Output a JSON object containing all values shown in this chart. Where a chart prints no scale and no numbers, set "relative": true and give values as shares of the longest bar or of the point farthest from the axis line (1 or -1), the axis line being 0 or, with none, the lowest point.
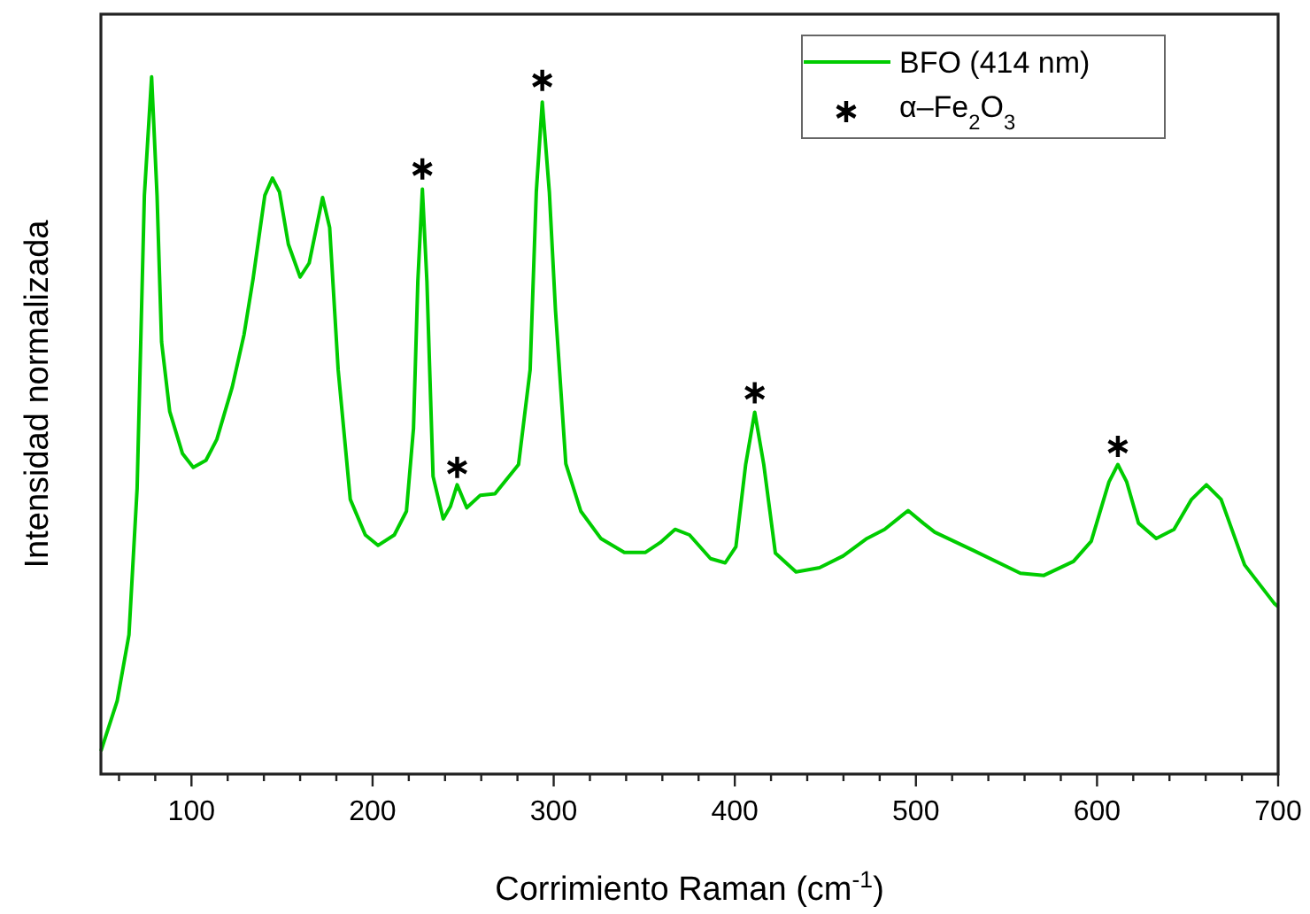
{
  "chart_data": {
    "type": "line",
    "relative": true,
    "xlabel": "Corrimiento Raman (cm$^{-1}$)",
    "ylabel": "Intensidad normalizada",
    "xlim": [
      50,
      700
    ],
    "xticks": [
      {
        "value": 60,
        "label": null
      },
      {
        "value": 80,
        "label": null
      },
      100,
      {
        "value": 120,
        "label": null
      },
      {
        "value": 140,
        "label": null
      },
      {
        "value": 160,
        "label": null
      },
      {
        "value": 180,
        "label": null
      },
      200,
      {
        "value": 220,
        "label": null
      },
      {
        "value": 240,
        "label": null
      },
      {
        "value": 260,
        "label": null
      },
      {
        "value": 280,
        "label": null
      },
      300,
      {
        "value": 320,
        "label": null
      },
      {
        "value": 340,
        "label": null
      },
      {
        "value": 360,
        "label": null
      },
      {
        "value": 380,
        "label": null
      },
      400,
      {
        "value": 420,
        "label": null
      },
      {
        "value": 440,
        "label": null
      },
      {
        "value": 460,
        "label": null
      },
      {
        "value": 480,
        "label": null
      },
      500,
      {
        "value": 520,
        "label": null
      },
      {
        "value": 540,
        "label": null
      },
      {
        "value": 560,
        "label": null
      },
      {
        "value": 580,
        "label": null
      },
      600,
      {
        "value": 620,
        "label": null
      },
      {
        "value": 640,
        "label": null
      },
      {
        "value": 660,
        "label": null
      },
      {
        "value": 680,
        "label": null
      },
      700
    ],
    "tick_labels": "x",
    "legend": "top right",
    "grid": false,
    "series": [
      {
        "name": "BFO (414 nm)",
        "color": "#00cc00",
        "line_style": "solid",
        "marker": "none",
        "x": [
          50,
          59,
          65.5,
          70,
          74,
          78,
          81,
          83.5,
          88,
          95,
          101,
          108,
          114,
          122.5,
          129,
          134,
          140.5,
          144.7,
          148.6,
          153.5,
          160,
          165,
          172.4,
          176.3,
          181,
          187.7,
          196,
          203,
          212,
          218.7,
          222.6,
          225,
          227.5,
          230,
          233.4,
          239,
          243,
          246.7,
          252,
          259.5,
          267.6,
          280.6,
          287,
          290.4,
          293.7,
          297.6,
          301,
          306.7,
          315,
          326,
          339,
          350.7,
          358.8,
          367,
          375,
          386.6,
          394.7,
          400.6,
          406,
          411,
          416,
          422.4,
          433.8,
          446.8,
          459.9,
          473,
          482.7,
          495.7,
          504,
          510.4,
          531.6,
          557.7,
          570.7,
          587,
          596.8,
          606.6,
          611.5,
          616.4,
          622.9,
          632.7,
          642.5,
          652.2,
          660.4,
          668.5,
          681.5,
          697.8,
          700
        ],
        "values": [
          0.033,
          0.105,
          0.2,
          0.41,
          0.83,
          1,
          0.83,
          0.62,
          0.52,
          0.46,
          0.44,
          0.45,
          0.48,
          0.555,
          0.63,
          0.71,
          0.83,
          0.855,
          0.835,
          0.76,
          0.713,
          0.733,
          0.827,
          0.784,
          0.58,
          0.394,
          0.343,
          0.328,
          0.343,
          0.377,
          0.496,
          0.707,
          0.839,
          0.707,
          0.427,
          0.366,
          0.384,
          0.415,
          0.382,
          0.4,
          0.402,
          0.444,
          0.58,
          0.835,
          0.964,
          0.835,
          0.665,
          0.445,
          0.377,
          0.338,
          0.318,
          0.318,
          0.332,
          0.351,
          0.343,
          0.309,
          0.303,
          0.326,
          0.444,
          0.519,
          0.444,
          0.317,
          0.29,
          0.296,
          0.313,
          0.338,
          0.351,
          0.378,
          0.36,
          0.347,
          0.321,
          0.288,
          0.285,
          0.305,
          0.334,
          0.419,
          0.444,
          0.419,
          0.36,
          0.338,
          0.351,
          0.394,
          0.415,
          0.394,
          0.3,
          0.245,
          0.24
        ]
      },
      {
        "name": "α–Fe$_{2}$O$_{3}$",
        "type": "scatter",
        "color": "#000000",
        "marker": "cross",
        "x": [
          227.5,
          246.7,
          293.7,
          411,
          611.5
        ],
        "values": [
          0.868,
          0.44,
          0.995,
          0.547,
          0.47
        ]
      }
    ]
  }
}
